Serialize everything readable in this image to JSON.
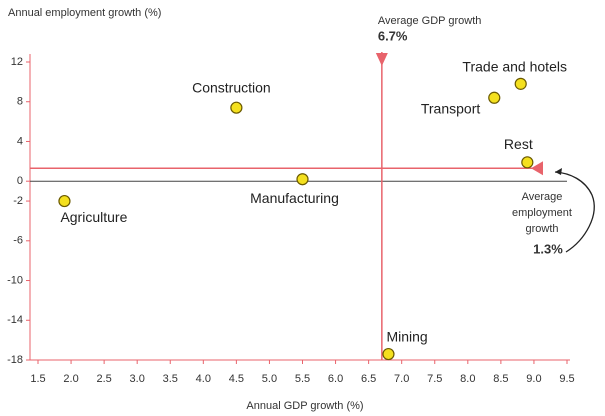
{
  "chart_data": {
    "type": "scatter",
    "title": "Annual employment growth (%)",
    "xlabel": "Annual GDP growth (%)",
    "x": [
      1.9,
      4.5,
      5.5,
      6.8,
      8.4,
      8.8,
      8.9
    ],
    "values": [
      -2,
      7.4,
      0.2,
      -17.4,
      8.4,
      9.8,
      1.9
    ],
    "labels": [
      "Agriculture",
      "Construction",
      "Manufacturing",
      "Mining",
      "Transport",
      "Trade and hotels",
      "Rest"
    ],
    "color": "#f4e01e",
    "xlim": [
      1.5,
      9.5
    ],
    "ylim": [
      -18,
      12
    ],
    "xticks": [
      1.5,
      {
        "value": 2,
        "label": "2.0"
      },
      2.5,
      {
        "value": 3,
        "label": "3.0"
      },
      3.5,
      {
        "value": 4,
        "label": "4.0"
      },
      4.5,
      {
        "value": 5,
        "label": "5.0"
      },
      5.5,
      {
        "value": 6,
        "label": "6.0"
      },
      6.5,
      {
        "value": 7,
        "label": "7.0"
      },
      7.5,
      {
        "value": 8,
        "label": "8.0"
      },
      8.5,
      {
        "value": 9,
        "label": "9.0"
      },
      9.5
    ],
    "yticks": [
      12,
      8,
      4,
      0,
      -2,
      -6,
      -10,
      -14,
      -18
    ],
    "zero_line": true,
    "reference_color": "#e8636b",
    "x_reference": {
      "text": "Average GDP growth",
      "value": 6.7,
      "value_label": "6.7%"
    },
    "y_reference": {
      "text": [
        "Average",
        "employment",
        "growth"
      ],
      "value": 1.3,
      "value_label": "1.3%"
    }
  }
}
